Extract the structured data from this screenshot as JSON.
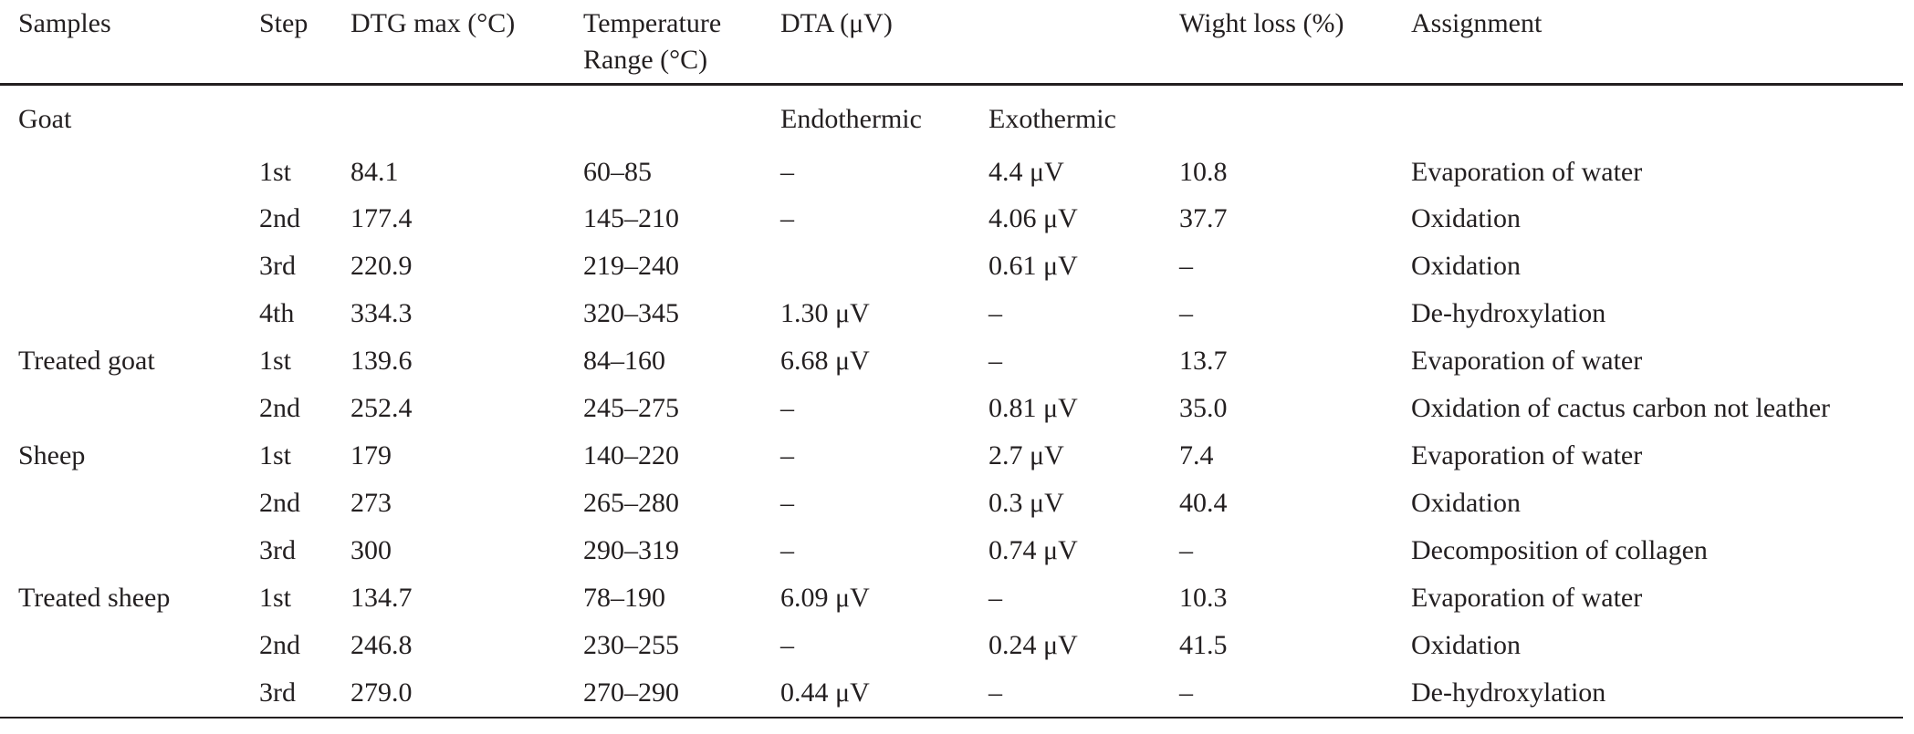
{
  "table": {
    "headers": {
      "samples": "Samples",
      "step": "Step",
      "dtg_max": "DTG max (°C)",
      "temp_range": "Temperature Range (°C)",
      "dta": "DTA (μV)",
      "dta_blank": "",
      "weight_loss": "Wight loss (%)",
      "assignment": "Assignment"
    },
    "subheaders": {
      "group": "Goat",
      "endothermic": "Endothermic",
      "exothermic": "Exothermic"
    },
    "rows": [
      {
        "sample": "",
        "step": "1st",
        "dtg": "84.1",
        "range": "60–85",
        "endo": "–",
        "exo": "4.4 μV",
        "loss": "10.8",
        "assignment": "Evaporation of water"
      },
      {
        "sample": "",
        "step": "2nd",
        "dtg": "177.4",
        "range": "145–210",
        "endo": "–",
        "exo": "4.06 μV",
        "loss": "37.7",
        "assignment": "Oxidation"
      },
      {
        "sample": "",
        "step": "3rd",
        "dtg": "220.9",
        "range": "219–240",
        "endo": "",
        "exo": "0.61 μV",
        "loss": "–",
        "assignment": "Oxidation"
      },
      {
        "sample": "",
        "step": "4th",
        "dtg": "334.3",
        "range": "320–345",
        "endo": "1.30 μV",
        "exo": "–",
        "loss": "–",
        "assignment": "De-hydroxylation"
      },
      {
        "sample": "Treated goat",
        "step": "1st",
        "dtg": "139.6",
        "range": "84–160",
        "endo": "6.68 μV",
        "exo": "–",
        "loss": "13.7",
        "assignment": "Evaporation of water"
      },
      {
        "sample": "",
        "step": "2nd",
        "dtg": "252.4",
        "range": "245–275",
        "endo": "–",
        "exo": "0.81 μV",
        "loss": "35.0",
        "assignment": "Oxidation of cactus carbon not leather"
      },
      {
        "sample": "Sheep",
        "step": "1st",
        "dtg": "179",
        "range": "140–220",
        "endo": "–",
        "exo": "2.7 μV",
        "loss": "7.4",
        "assignment": "Evaporation of water"
      },
      {
        "sample": "",
        "step": "2nd",
        "dtg": "273",
        "range": "265–280",
        "endo": "–",
        "exo": "0.3 μV",
        "loss": "40.4",
        "assignment": "Oxidation"
      },
      {
        "sample": "",
        "step": "3rd",
        "dtg": "300",
        "range": "290–319",
        "endo": "–",
        "exo": "0.74 μV",
        "loss": "–",
        "assignment": "Decomposition of collagen"
      },
      {
        "sample": "Treated sheep",
        "step": "1st",
        "dtg": "134.7",
        "range": "78–190",
        "endo": "6.09 μV",
        "exo": "–",
        "loss": "10.3",
        "assignment": "Evaporation of water"
      },
      {
        "sample": "",
        "step": "2nd",
        "dtg": "246.8",
        "range": "230–255",
        "endo": "–",
        "exo": "0.24 μV",
        "loss": "41.5",
        "assignment": "Oxidation"
      },
      {
        "sample": "",
        "step": "3rd",
        "dtg": "279.0",
        "range": "270–290",
        "endo": "0.44 μV",
        "exo": "–",
        "loss": "–",
        "assignment": "De-hydroxylation"
      }
    ]
  }
}
